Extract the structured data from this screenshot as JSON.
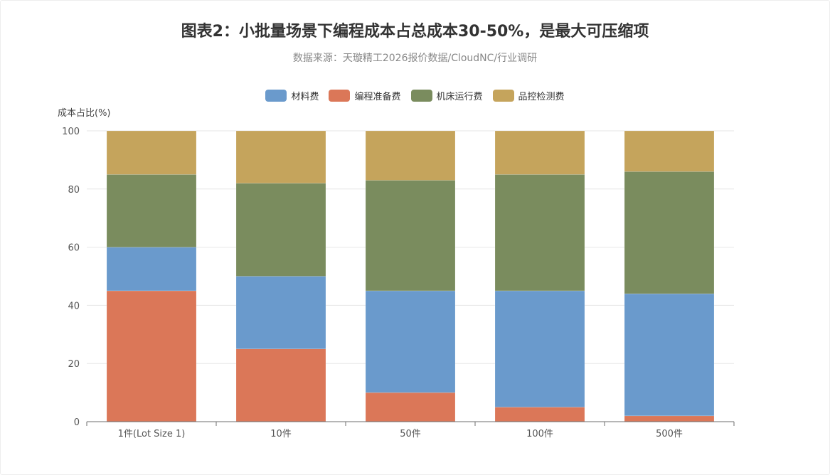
{
  "chart_data": {
    "type": "bar",
    "stacked": true,
    "title": "图表2：小批量场景下编程成本占总成本30-50%，是最大可压缩项",
    "subtitle": "数据来源：天璇精工2026报价数据/CloudNC/行业调研",
    "ylabel": "成本占比(%)",
    "xlabel": "",
    "ylim": [
      0,
      100
    ],
    "yticks": [
      0,
      20,
      40,
      60,
      80,
      100
    ],
    "grid": true,
    "legend_position": "top-center",
    "categories": [
      "1件(Lot Size 1)",
      "10件",
      "50件",
      "100件",
      "500件"
    ],
    "series": [
      {
        "name": "编程准备费",
        "color": "#db7758",
        "values": [
          45,
          25,
          10,
          5,
          2
        ]
      },
      {
        "name": "材料费",
        "color": "#6a9acc",
        "values": [
          15,
          25,
          35,
          40,
          42
        ]
      },
      {
        "name": "机床运行费",
        "color": "#7a8c5e",
        "values": [
          25,
          32,
          38,
          40,
          42
        ]
      },
      {
        "name": "品控检测费",
        "color": "#c5a45c",
        "values": [
          15,
          18,
          17,
          15,
          14
        ]
      }
    ],
    "legend_order": [
      "材料费",
      "编程准备费",
      "机床运行费",
      "品控检测费"
    ]
  }
}
